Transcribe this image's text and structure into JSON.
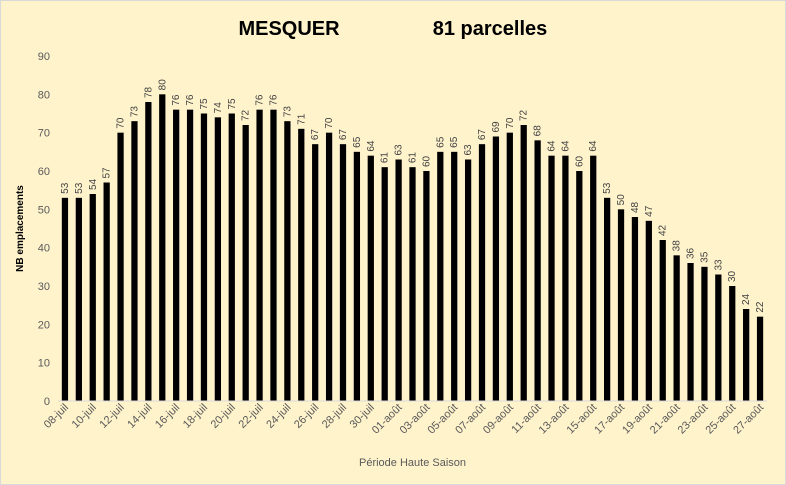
{
  "chart_data": {
    "type": "bar",
    "title_left": "MESQUER",
    "title_right": "81 parcelles",
    "xlabel": "Période Haute Saison",
    "ylabel": "NB emplacements",
    "ylim": [
      0,
      90
    ],
    "yticks": [
      0,
      10,
      20,
      30,
      40,
      50,
      60,
      70,
      80,
      90
    ],
    "grid": false,
    "bar_color": "#000000",
    "background_color": "#fff3cc",
    "categories": [
      "08-juil",
      "09-juil",
      "10-juil",
      "11-juil",
      "12-juil",
      "13-juil",
      "14-juil",
      "15-juil",
      "16-juil",
      "17-juil",
      "18-juil",
      "19-juil",
      "20-juil",
      "21-juil",
      "22-juil",
      "23-juil",
      "24-juil",
      "25-juil",
      "26-juil",
      "27-juil",
      "28-juil",
      "29-juil",
      "30-juil",
      "31-juil",
      "01-août",
      "02-août",
      "03-août",
      "04-août",
      "05-août",
      "06-août",
      "07-août",
      "08-août",
      "09-août",
      "10-août",
      "11-août",
      "12-août",
      "13-août",
      "14-août",
      "15-août",
      "16-août",
      "17-août",
      "18-août",
      "19-août",
      "20-août",
      "21-août",
      "22-août",
      "23-août",
      "24-août",
      "25-août",
      "26-août",
      "27-août"
    ],
    "values": [
      53,
      53,
      54,
      57,
      70,
      73,
      78,
      80,
      76,
      76,
      75,
      74,
      75,
      72,
      76,
      76,
      73,
      71,
      67,
      70,
      67,
      65,
      64,
      61,
      63,
      61,
      60,
      65,
      65,
      63,
      67,
      69,
      70,
      72,
      68,
      64,
      64,
      60,
      64,
      53,
      50,
      48,
      47,
      42,
      38,
      36,
      35,
      33,
      30,
      24,
      22
    ]
  }
}
